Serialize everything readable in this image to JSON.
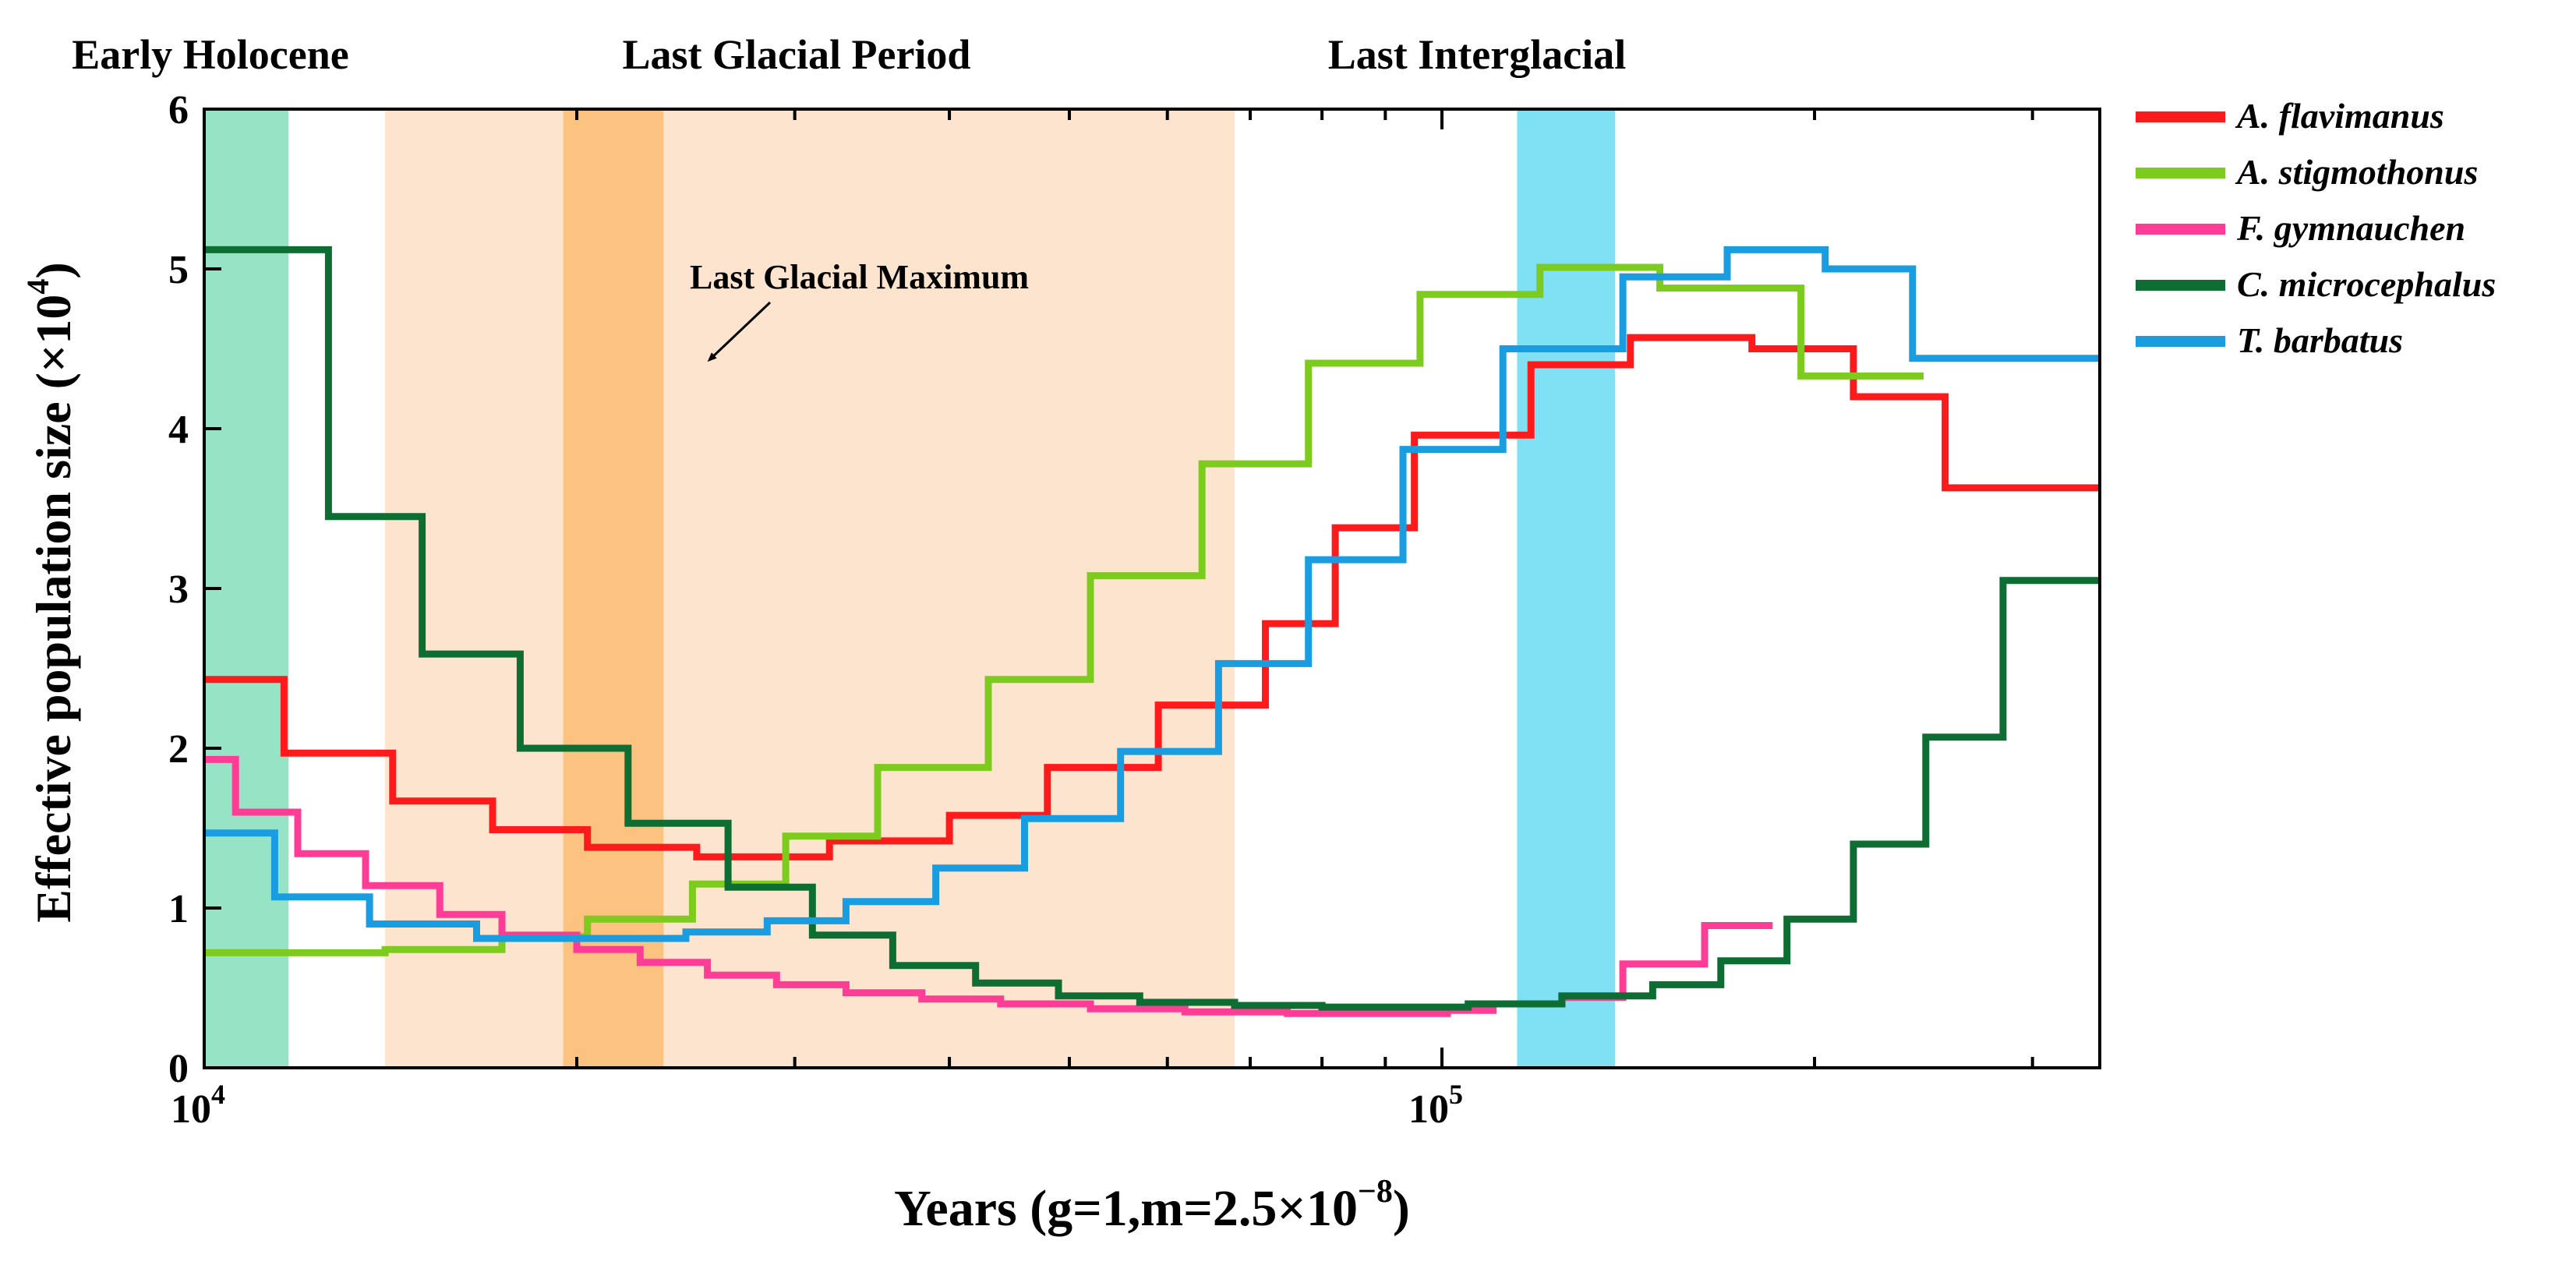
{
  "chart_data": {
    "type": "line",
    "step": true,
    "x_scale": "log",
    "xlim": [
      10000,
      340000
    ],
    "ylim": [
      0,
      6
    ],
    "xlabel_main": "Years (g=1,m=2.5×10",
    "xlabel_exp": "−8",
    "xlabel_close": ")",
    "ylabel_main": "Effective population size (×10",
    "ylabel_exp": "4",
    "ylabel_close": ")",
    "y_ticks": [
      "0",
      "1",
      "2",
      "3",
      "4",
      "5",
      "6"
    ],
    "x_tick_base": "10",
    "x_ticks": [
      {
        "value": 10000,
        "exp": "4"
      },
      {
        "value": 100000,
        "exp": "5"
      }
    ],
    "periods": [
      {
        "label": "Early Holocene"
      },
      {
        "label": "Last Glacial Period"
      },
      {
        "label": "Last Interglacial"
      }
    ],
    "bands": [
      {
        "start": 10000,
        "end": 11700,
        "color": "#96e3c5"
      },
      {
        "start": 14000,
        "end": 68000,
        "color": "#fde4cf"
      },
      {
        "start": 19500,
        "end": 23500,
        "color": "#fbc37f"
      },
      {
        "start": 115000,
        "end": 138000,
        "color": "#80e1f4"
      }
    ],
    "annotation": {
      "text": "Last Glacial Maximum",
      "arrow_to": [
        24500,
        4.4
      ]
    },
    "legend_position": "right",
    "series": [
      {
        "name": "A. flavimanus",
        "color": "#ff1b1b",
        "points": [
          [
            10000,
            2.43
          ],
          [
            11600,
            1.97
          ],
          [
            14200,
            1.67
          ],
          [
            17100,
            1.49
          ],
          [
            20400,
            1.38
          ],
          [
            25000,
            1.32
          ],
          [
            32000,
            1.42
          ],
          [
            40000,
            1.58
          ],
          [
            48000,
            1.88
          ],
          [
            59000,
            2.27
          ],
          [
            72000,
            2.78
          ],
          [
            82000,
            3.38
          ],
          [
            95000,
            3.96
          ],
          [
            118000,
            4.4
          ],
          [
            142000,
            4.57
          ],
          [
            178000,
            4.5
          ],
          [
            215000,
            4.2
          ],
          [
            255000,
            3.63
          ],
          [
            340000,
            3.63
          ]
        ]
      },
      {
        "name": "A. stigmothonus",
        "color": "#7ecb1f",
        "points": [
          [
            10000,
            0.72
          ],
          [
            14000,
            0.74
          ],
          [
            17400,
            0.82
          ],
          [
            20400,
            0.93
          ],
          [
            24800,
            1.15
          ],
          [
            29500,
            1.45
          ],
          [
            35000,
            1.88
          ],
          [
            43000,
            2.43
          ],
          [
            52000,
            3.08
          ],
          [
            64000,
            3.78
          ],
          [
            78000,
            4.41
          ],
          [
            96000,
            4.84
          ],
          [
            120000,
            5.01
          ],
          [
            150000,
            4.88
          ],
          [
            195000,
            4.33
          ],
          [
            245000,
            4.33
          ]
        ]
      },
      {
        "name": "F. gymnauchen",
        "color": "#ff3d96",
        "points": [
          [
            10000,
            1.93
          ],
          [
            10600,
            1.6
          ],
          [
            11900,
            1.34
          ],
          [
            13500,
            1.14
          ],
          [
            15500,
            0.96
          ],
          [
            17400,
            0.83
          ],
          [
            20000,
            0.74
          ],
          [
            22500,
            0.66
          ],
          [
            25500,
            0.58
          ],
          [
            29000,
            0.52
          ],
          [
            33000,
            0.47
          ],
          [
            38000,
            0.43
          ],
          [
            44000,
            0.4
          ],
          [
            52000,
            0.37
          ],
          [
            62000,
            0.35
          ],
          [
            75000,
            0.34
          ],
          [
            88000,
            0.34
          ],
          [
            101000,
            0.36
          ],
          [
            110000,
            0.4
          ],
          [
            125000,
            0.44
          ],
          [
            140000,
            0.65
          ],
          [
            163000,
            0.89
          ],
          [
            185000,
            0.89
          ]
        ]
      },
      {
        "name": "C. microcephalus",
        "color": "#0e6d32",
        "points": [
          [
            10000,
            5.12
          ],
          [
            12600,
            3.45
          ],
          [
            15000,
            2.59
          ],
          [
            18000,
            2.0
          ],
          [
            22000,
            1.53
          ],
          [
            26500,
            1.13
          ],
          [
            31000,
            0.83
          ],
          [
            36000,
            0.64
          ],
          [
            42000,
            0.53
          ],
          [
            49000,
            0.45
          ],
          [
            57000,
            0.41
          ],
          [
            68000,
            0.39
          ],
          [
            80000,
            0.38
          ],
          [
            95000,
            0.38
          ],
          [
            105000,
            0.4
          ],
          [
            125000,
            0.45
          ],
          [
            148000,
            0.52
          ],
          [
            168000,
            0.67
          ],
          [
            190000,
            0.93
          ],
          [
            215000,
            1.4
          ],
          [
            246000,
            2.07
          ],
          [
            284000,
            3.05
          ],
          [
            340000,
            3.05
          ]
        ]
      },
      {
        "name": "T. barbatus",
        "color": "#1a9de0",
        "points": [
          [
            10000,
            1.47
          ],
          [
            11400,
            1.07
          ],
          [
            13600,
            0.9
          ],
          [
            16600,
            0.81
          ],
          [
            21000,
            0.81
          ],
          [
            24500,
            0.85
          ],
          [
            28500,
            0.92
          ],
          [
            33000,
            1.04
          ],
          [
            39000,
            1.25
          ],
          [
            46000,
            1.56
          ],
          [
            55000,
            1.98
          ],
          [
            66000,
            2.53
          ],
          [
            78000,
            3.18
          ],
          [
            93000,
            3.87
          ],
          [
            112000,
            4.5
          ],
          [
            140000,
            4.95
          ],
          [
            170000,
            5.12
          ],
          [
            204000,
            5.0
          ],
          [
            240000,
            4.44
          ],
          [
            340000,
            4.44
          ]
        ]
      }
    ]
  }
}
